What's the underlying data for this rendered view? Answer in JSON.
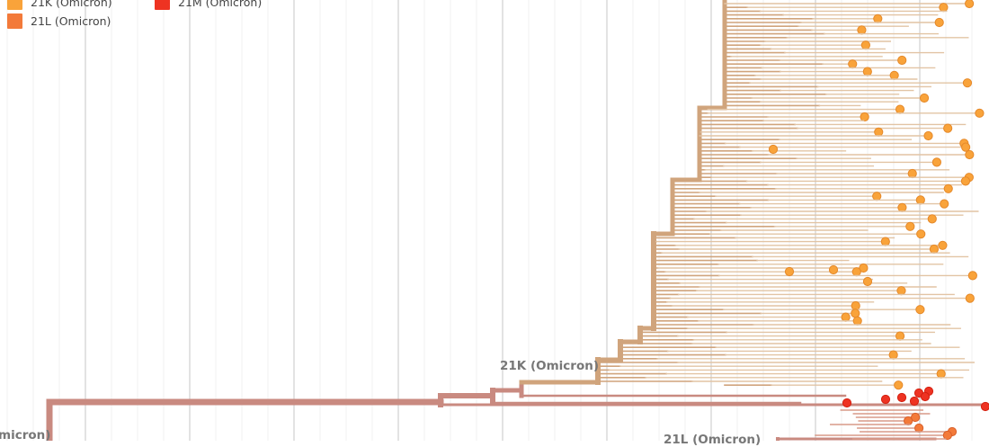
{
  "legend": [
    {
      "label": "21K (Omicron)",
      "color": "#f9a33a"
    },
    {
      "label": "21M (Omicron)",
      "color": "#ee3322"
    },
    {
      "label": "21L (Omicron)",
      "color": "#f37a3a"
    }
  ],
  "clade_labels": {
    "k": "21K (Omicron)",
    "l": "21L (Omicron)",
    "left": "micron)"
  },
  "colors": {
    "trunk": "#c98a80",
    "k_branch": "#d0a47c",
    "k_tip": "#f9a33a",
    "k_tip_stroke": "#e5892a",
    "m_tip": "#ee3322",
    "l_tip": "#f37a3a",
    "grid_major": "#dcdcdc",
    "grid_minor": "#f0f0f0"
  }
}
